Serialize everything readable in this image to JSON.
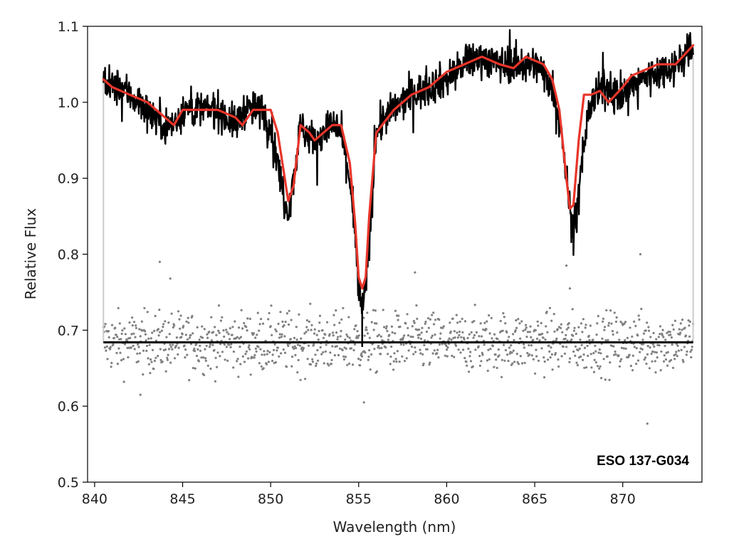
{
  "chart_data": {
    "type": "line",
    "title": "",
    "xlabel": "Wavelength (nm)",
    "ylabel": "Relative Flux",
    "xlim": [
      839.6,
      874.5
    ],
    "ylim": [
      0.5,
      1.1
    ],
    "xticks": [
      840,
      845,
      850,
      855,
      860,
      865,
      870
    ],
    "yticks": [
      0.5,
      0.6,
      0.7,
      0.8,
      0.9,
      1.0,
      1.1
    ],
    "xtick_labels": [
      "840",
      "845",
      "850",
      "855",
      "860",
      "865",
      "870"
    ],
    "ytick_labels": [
      "0.5",
      "0.6",
      "0.7",
      "0.8",
      "0.9",
      "1.0",
      "1.1"
    ],
    "grid": false,
    "annotation": "ESO 137-G034",
    "colors": {
      "observed": "#000000",
      "model": "#e8352a",
      "residuals": "#808080",
      "zero_level": "#000000",
      "edge_lines": "#cccccc"
    },
    "series": [
      {
        "kind": "observed-spectrum",
        "x": [
          840.5,
          841.0,
          841.5,
          842.0,
          842.5,
          843.0,
          843.5,
          844.0,
          844.5,
          845.0,
          845.5,
          846.0,
          846.5,
          847.0,
          847.5,
          848.0,
          848.5,
          849.0,
          849.5,
          850.0,
          850.4,
          850.8,
          851.0,
          851.3,
          851.7,
          852.0,
          852.5,
          853.0,
          853.5,
          854.0,
          854.5,
          854.8,
          855.0,
          855.2,
          855.4,
          855.7,
          856.0,
          856.5,
          857.0,
          858.0,
          859.0,
          860.0,
          861.0,
          862.0,
          863.0,
          864.0,
          865.0,
          865.5,
          866.0,
          866.5,
          866.8,
          867.1,
          867.4,
          867.8,
          868.2,
          869.0,
          870.0,
          871.0,
          872.0,
          873.0,
          874.0
        ],
        "y": [
          1.03,
          1.02,
          1.02,
          1.01,
          1.0,
          0.99,
          0.98,
          0.97,
          0.97,
          0.99,
          0.99,
          0.99,
          0.99,
          0.99,
          0.98,
          0.97,
          0.99,
          0.99,
          0.99,
          0.97,
          0.92,
          0.87,
          0.86,
          0.9,
          0.97,
          0.96,
          0.95,
          0.96,
          0.97,
          0.96,
          0.9,
          0.82,
          0.75,
          0.73,
          0.75,
          0.85,
          0.96,
          0.98,
          0.99,
          1.01,
          1.02,
          1.03,
          1.05,
          1.06,
          1.05,
          1.05,
          1.05,
          1.04,
          1.02,
          0.97,
          0.9,
          0.84,
          0.85,
          0.95,
          1.0,
          1.02,
          1.01,
          1.03,
          1.04,
          1.05,
          1.07
        ]
      },
      {
        "kind": "model-fit",
        "x": [
          840.5,
          841.0,
          842.0,
          843.0,
          843.5,
          844.0,
          844.5,
          845.0,
          845.5,
          846.0,
          847.0,
          848.0,
          848.4,
          849.0,
          850.0,
          850.4,
          850.8,
          851.0,
          851.3,
          851.7,
          852.2,
          852.5,
          853.0,
          853.5,
          854.0,
          854.5,
          854.8,
          855.0,
          855.2,
          855.4,
          855.6,
          856.0,
          856.5,
          857.0,
          858.0,
          859.0,
          860.0,
          861.0,
          862.0,
          863.0,
          863.8,
          864.5,
          865.0,
          865.5,
          866.0,
          866.4,
          866.8,
          867.0,
          867.2,
          867.5,
          867.8,
          868.2,
          868.7,
          869.2,
          870.0,
          870.5,
          871.0,
          872.0,
          873.0,
          874.0
        ],
        "y": [
          1.03,
          1.02,
          1.01,
          1.0,
          0.99,
          0.98,
          0.97,
          0.99,
          0.99,
          0.99,
          0.99,
          0.98,
          0.97,
          0.99,
          0.99,
          0.96,
          0.9,
          0.87,
          0.89,
          0.97,
          0.96,
          0.95,
          0.96,
          0.97,
          0.97,
          0.92,
          0.84,
          0.77,
          0.755,
          0.77,
          0.85,
          0.96,
          0.975,
          0.99,
          1.01,
          1.02,
          1.04,
          1.05,
          1.06,
          1.05,
          1.045,
          1.06,
          1.055,
          1.05,
          1.03,
          0.99,
          0.9,
          0.86,
          0.865,
          0.95,
          1.01,
          1.01,
          1.015,
          1.0,
          1.02,
          1.035,
          1.04,
          1.05,
          1.05,
          1.075
        ]
      },
      {
        "kind": "zero-level",
        "x": [
          840.5,
          874.0
        ],
        "y": [
          0.684,
          0.684
        ]
      },
      {
        "kind": "residuals-scatter",
        "x_range": [
          840.5,
          874.0
        ],
        "center": 0.684,
        "typical_spread": 0.025,
        "outliers": [
          [
            843.7,
            0.79
          ],
          [
            855.3,
            0.605
          ],
          [
            858.2,
            0.776
          ],
          [
            866.8,
            0.785
          ],
          [
            871.0,
            0.8
          ],
          [
            871.4,
            0.577
          ],
          [
            867.0,
            0.755
          ],
          [
            842.6,
            0.615
          ],
          [
            844.3,
            0.768
          ]
        ]
      }
    ]
  }
}
